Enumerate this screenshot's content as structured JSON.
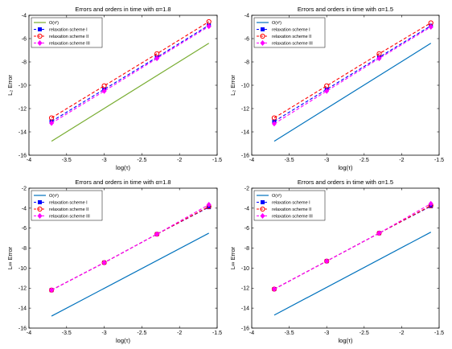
{
  "chart_data": [
    {
      "type": "line",
      "title": "Errors and orders in time with α=1.8",
      "xlabel": "log(τ)",
      "ylabel": "L₂ Error",
      "xlim": [
        -4,
        -1.5
      ],
      "ylim": [
        -16,
        -4
      ],
      "xticks": [
        "-4",
        "-3.5",
        "-3",
        "-2.5",
        "-2",
        "-1.5"
      ],
      "yticks": [
        "-16",
        "-14",
        "-12",
        "-10",
        "-8",
        "-6",
        "-4"
      ],
      "legend_position": "top-left",
      "reference": {
        "name": "O(τ²)",
        "color": "#77ac30",
        "x": [
          -3.7,
          -1.61
        ],
        "y": [
          -14.8,
          -6.4
        ]
      },
      "series": [
        {
          "name": "relaxation scheme I",
          "color": "#0000ff",
          "marker": "square",
          "x": [
            -3.7,
            -3.0,
            -2.3,
            -1.61
          ],
          "y": [
            -13.1,
            -10.35,
            -7.6,
            -4.85
          ]
        },
        {
          "name": "relaxation scheme II",
          "color": "#ff0000",
          "marker": "circle",
          "x": [
            -3.7,
            -3.0,
            -2.3,
            -1.61
          ],
          "y": [
            -12.8,
            -10.05,
            -7.3,
            -4.55
          ]
        },
        {
          "name": "relaxation scheme III",
          "color": "#ff00ff",
          "marker": "diamond",
          "x": [
            -3.7,
            -3.0,
            -2.3,
            -1.61
          ],
          "y": [
            -13.25,
            -10.5,
            -7.7,
            -4.95
          ]
        }
      ]
    },
    {
      "type": "line",
      "title": "Errors and orders in time with α=1.5",
      "xlabel": "log(τ)",
      "ylabel": "L₂ Error",
      "xlim": [
        -4,
        -1.5
      ],
      "ylim": [
        -16,
        -4
      ],
      "xticks": [
        "-4",
        "-3.5",
        "-3",
        "-2.5",
        "-2",
        "-1.5"
      ],
      "yticks": [
        "-16",
        "-14",
        "-12",
        "-10",
        "-8",
        "-6",
        "-4"
      ],
      "legend_position": "top-left",
      "reference": {
        "name": "O(τ²)",
        "color": "#0072bd",
        "x": [
          -3.7,
          -1.61
        ],
        "y": [
          -14.8,
          -6.4
        ]
      },
      "series": [
        {
          "name": "relaxation scheme I",
          "color": "#0000ff",
          "marker": "square",
          "x": [
            -3.7,
            -3.0,
            -2.3,
            -1.61
          ],
          "y": [
            -13.1,
            -10.35,
            -7.6,
            -4.9
          ]
        },
        {
          "name": "relaxation scheme II",
          "color": "#ff0000",
          "marker": "circle",
          "x": [
            -3.7,
            -3.0,
            -2.3,
            -1.61
          ],
          "y": [
            -12.8,
            -10.05,
            -7.3,
            -4.65
          ]
        },
        {
          "name": "relaxation scheme III",
          "color": "#ff00ff",
          "marker": "diamond",
          "x": [
            -3.7,
            -3.0,
            -2.3,
            -1.61
          ],
          "y": [
            -13.3,
            -10.5,
            -7.7,
            -5.0
          ]
        }
      ]
    },
    {
      "type": "line",
      "title": "Errors and orders in time with α=1.8",
      "xlabel": "log(τ)",
      "ylabel": "L∞ Error",
      "xlim": [
        -4,
        -1.5
      ],
      "ylim": [
        -16,
        -2
      ],
      "xticks": [
        "-4",
        "-3.5",
        "-3",
        "-2.5",
        "-2",
        "-1.5"
      ],
      "yticks": [
        "-16",
        "-14",
        "-12",
        "-10",
        "-8",
        "-6",
        "-4",
        "-2"
      ],
      "legend_position": "top-left",
      "reference": {
        "name": "O(τ²)",
        "color": "#0072bd",
        "x": [
          -3.7,
          -1.61
        ],
        "y": [
          -14.8,
          -6.5
        ]
      },
      "series": [
        {
          "name": "relaxation scheme I",
          "color": "#0000ff",
          "marker": "square",
          "x": [
            -3.7,
            -3.0,
            -2.3,
            -1.61
          ],
          "y": [
            -12.2,
            -9.45,
            -6.6,
            -3.9
          ]
        },
        {
          "name": "relaxation scheme II",
          "color": "#ff0000",
          "marker": "circle",
          "x": [
            -3.7,
            -3.0,
            -2.3,
            -1.61
          ],
          "y": [
            -12.2,
            -9.45,
            -6.6,
            -3.85
          ]
        },
        {
          "name": "relaxation scheme III",
          "color": "#ff00ff",
          "marker": "diamond",
          "x": [
            -3.7,
            -3.0,
            -2.3,
            -1.61
          ],
          "y": [
            -12.2,
            -9.45,
            -6.6,
            -3.65
          ]
        }
      ]
    },
    {
      "type": "line",
      "title": "Errors and orders in time with α=1.5",
      "xlabel": "log(τ)",
      "ylabel": "L∞ Error",
      "xlim": [
        -4,
        -1.5
      ],
      "ylim": [
        -16,
        -2
      ],
      "xticks": [
        "-4",
        "-3.5",
        "-3",
        "-2.5",
        "-2",
        "-1.5"
      ],
      "yticks": [
        "-16",
        "-14",
        "-12",
        "-10",
        "-8",
        "-6",
        "-4",
        "-2"
      ],
      "legend_position": "top-left",
      "reference": {
        "name": "O(τ²)",
        "color": "#0072bd",
        "x": [
          -3.7,
          -1.61
        ],
        "y": [
          -14.7,
          -6.4
        ]
      },
      "series": [
        {
          "name": "relaxation scheme I",
          "color": "#0000ff",
          "marker": "square",
          "x": [
            -3.7,
            -3.0,
            -2.3,
            -1.61
          ],
          "y": [
            -12.1,
            -9.3,
            -6.5,
            -3.8
          ]
        },
        {
          "name": "relaxation scheme II",
          "color": "#ff0000",
          "marker": "circle",
          "x": [
            -3.7,
            -3.0,
            -2.3,
            -1.61
          ],
          "y": [
            -12.1,
            -9.3,
            -6.5,
            -3.75
          ]
        },
        {
          "name": "relaxation scheme III",
          "color": "#ff00ff",
          "marker": "diamond",
          "x": [
            -3.7,
            -3.0,
            -2.3,
            -1.61
          ],
          "y": [
            -12.1,
            -9.3,
            -6.5,
            -3.55
          ]
        }
      ]
    }
  ]
}
